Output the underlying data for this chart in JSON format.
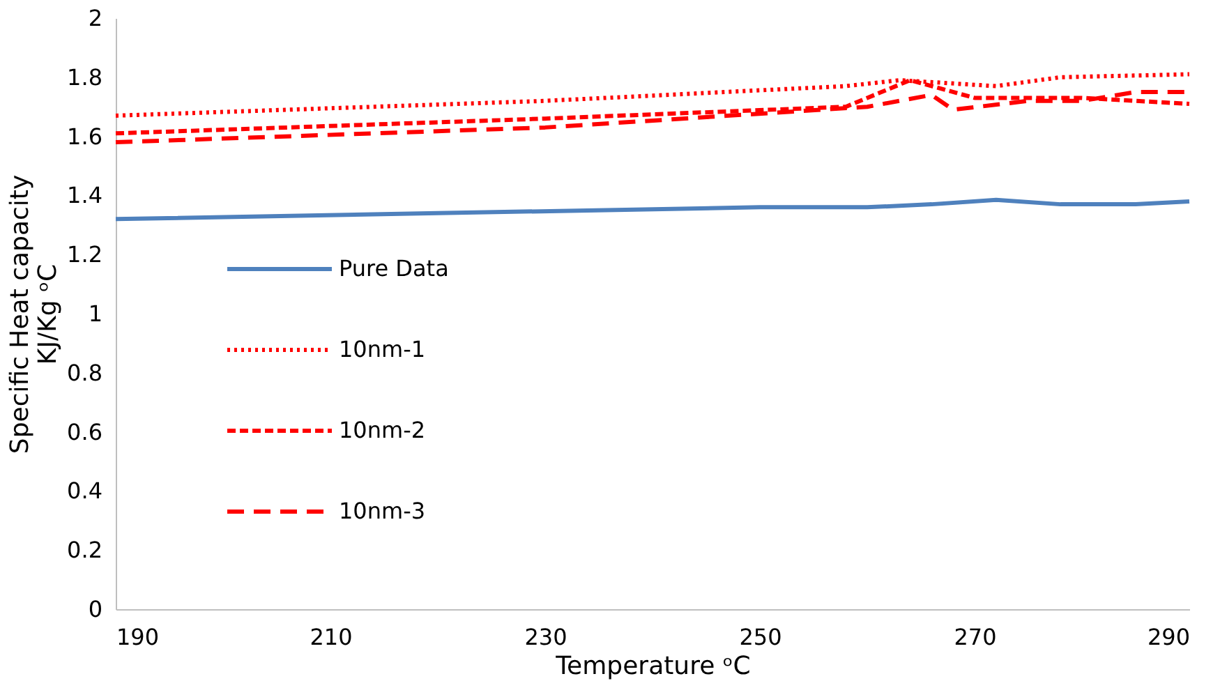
{
  "chart_data": {
    "type": "line",
    "xlabel": "Temperature ᵒC",
    "ylabel": [
      "Specific Heat capacity",
      "KJ/Kg ᵒC"
    ],
    "xlim": [
      190,
      290
    ],
    "xticks": [
      190,
      210,
      230,
      250,
      270,
      290
    ],
    "ylim": [
      0,
      2
    ],
    "yticks": [
      0,
      0.2,
      0.4,
      0.6,
      0.8,
      1,
      1.2,
      1.4,
      1.6,
      1.8,
      2
    ],
    "grid": false,
    "legend": "left",
    "marker": "none",
    "series": [
      {
        "name": "Pure Data",
        "color": "#4f81bd",
        "line_style": "solid",
        "x": [
          190,
          220,
          250,
          260,
          266,
          272,
          278,
          285,
          290
        ],
        "values": [
          1.32,
          1.34,
          1.36,
          1.36,
          1.37,
          1.385,
          1.37,
          1.37,
          1.38
        ]
      },
      {
        "name": "10nm-1",
        "color": "#ff0000",
        "line_style": "dotted",
        "x": [
          190,
          230,
          258,
          263,
          272,
          278,
          290
        ],
        "values": [
          1.67,
          1.72,
          1.77,
          1.79,
          1.77,
          1.8,
          1.81
        ]
      },
      {
        "name": "10nm-2",
        "color": "#ff0000",
        "line_style": "dashed",
        "x": [
          190,
          230,
          258,
          264,
          270,
          280,
          285,
          290
        ],
        "values": [
          1.61,
          1.66,
          1.7,
          1.79,
          1.73,
          1.73,
          1.72,
          1.71
        ]
      },
      {
        "name": "10nm-3",
        "color": "#ff0000",
        "line_style": "longdash",
        "x": [
          190,
          230,
          260,
          266,
          268,
          275,
          280,
          285,
          290
        ],
        "values": [
          1.58,
          1.63,
          1.7,
          1.74,
          1.69,
          1.72,
          1.72,
          1.75,
          1.75
        ]
      }
    ]
  }
}
